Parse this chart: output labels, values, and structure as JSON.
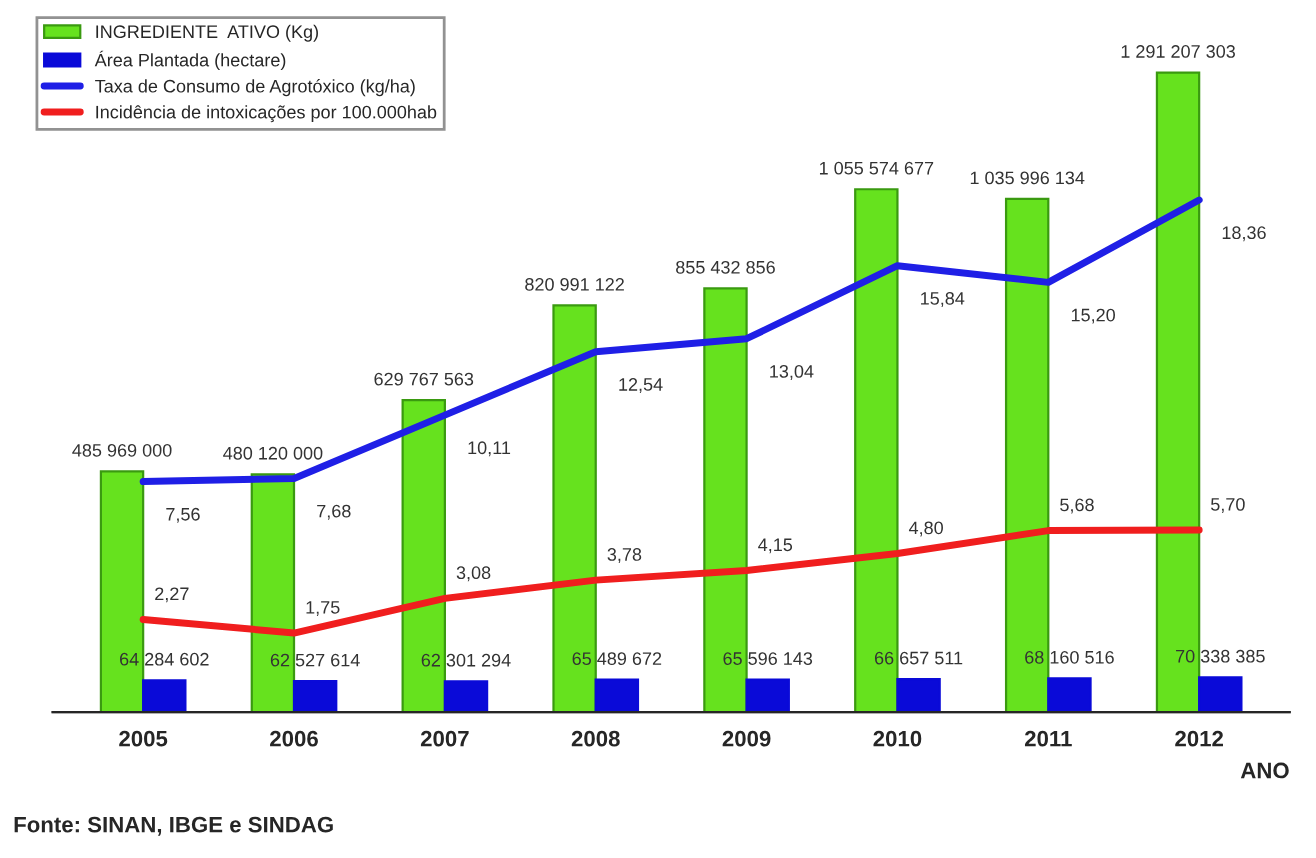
{
  "chart_data": {
    "type": "bar",
    "xlabel": "ANO",
    "categories": [
      "2005",
      "2006",
      "2007",
      "2008",
      "2009",
      "2010",
      "2011",
      "2012"
    ],
    "series": [
      {
        "name": "INGREDIENTE  ATIVO (Kg)",
        "color": "#66e21e",
        "values": [
          485969000,
          480120000,
          629767563,
          820991122,
          855432856,
          1055574677,
          1035996134,
          1291207303
        ],
        "value_labels": [
          "485 969 000",
          "480 120 000",
          "629 767 563",
          "820 991 122",
          "855 432 856",
          "1 055 574 677",
          "1 035 996 134",
          "1 291 207 303"
        ]
      },
      {
        "name": "Área Plantada (hectare)",
        "color": "#0a0ad8",
        "values": [
          64284602,
          62527614,
          62301294,
          65489672,
          65596143,
          66657511,
          68160516,
          70338385
        ],
        "value_labels": [
          "64 284 602",
          "62 527 614",
          "62 301 294",
          "65 489 672",
          "65 596 143",
          "66 657 511",
          "68 160 516",
          "70 338 385"
        ]
      },
      {
        "name": "Taxa de Consumo de Agrotóxico (kg/ha)",
        "color": "#1f1fe6",
        "type": "line",
        "axis": "y2",
        "values": [
          7.56,
          7.68,
          10.11,
          12.54,
          13.04,
          15.84,
          15.2,
          18.36
        ],
        "value_labels": [
          "7,56",
          "7,68",
          "10,11",
          "12,54",
          "13,04",
          "15,84",
          "15,20",
          "18,36"
        ]
      },
      {
        "name": "Incidência de intoxicações por 100.000hab",
        "color": "#f01e1e",
        "type": "line",
        "axis": "y2",
        "values": [
          2.27,
          1.75,
          3.08,
          3.78,
          4.15,
          4.8,
          5.68,
          5.7
        ],
        "value_labels": [
          "2,27",
          "1,75",
          "3,08",
          "3,78",
          "4,15",
          "4,80",
          "5,68",
          "5,70"
        ]
      }
    ],
    "legend": "top left",
    "grid": false,
    "tick_labels": "x",
    "annotations": [
      "Fonte: SINAN, IBGE e SINDAG"
    ]
  }
}
